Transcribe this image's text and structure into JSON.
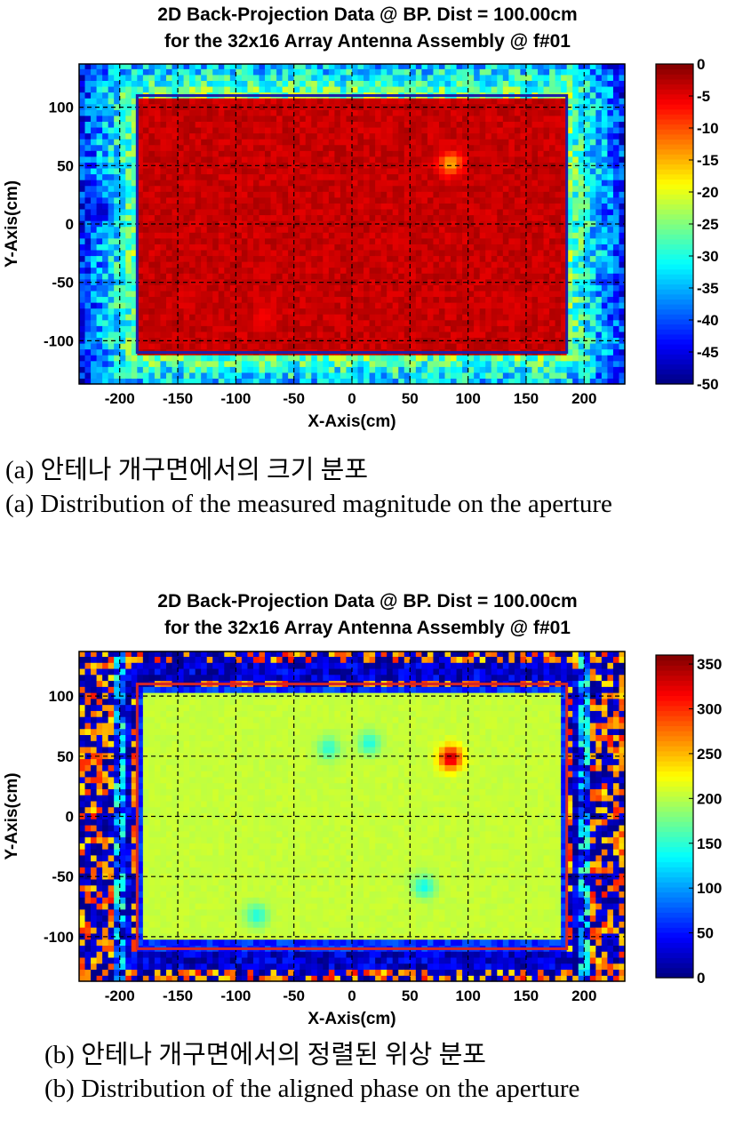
{
  "figure": {
    "panels": [
      {
        "title_line1": "2D Back-Projection Data @ BP. Dist = 100.00cm",
        "title_line2": "for the 32x16 Array Antenna Assembly @ f#01",
        "caption_ko": "(a) 안테나 개구면에서의 크기 분포",
        "caption_en": "(a) Distribution of the measured magnitude on the aperture"
      },
      {
        "title_line1": "2D Back-Projection Data @ BP. Dist = 100.00cm",
        "title_line2": "for the 32x16 Array Antenna Assembly @ f#01",
        "caption_ko": "(b) 안테나 개구면에서의 정렬된 위상 분포",
        "caption_en": "(b) Distribution of the aligned phase on the aperture"
      }
    ]
  },
  "chart_data": [
    {
      "type": "heatmap",
      "title": "2D Back-Projection Data @ BP. Dist = 100.00cm / for the 32x16 Array Antenna Assembly @ f#01",
      "xlabel": "X-Axis(cm)",
      "ylabel": "Y-Axis(cm)",
      "xlim": [
        -235,
        235
      ],
      "ylim": [
        -137,
        137
      ],
      "x_ticks": [
        -200,
        -150,
        -100,
        -50,
        0,
        50,
        100,
        150,
        200
      ],
      "y_ticks": [
        -100,
        -50,
        0,
        50,
        100
      ],
      "grid": true,
      "colorbar": {
        "min": -50,
        "max": 0,
        "ticks": [
          0,
          -5,
          -10,
          -15,
          -20,
          -25,
          -30,
          -35,
          -40,
          -45,
          -50
        ]
      },
      "aperture_rect": {
        "x": [
          -185,
          185
        ],
        "y": [
          -110,
          110
        ],
        "color": "#1f1fa6"
      },
      "field": {
        "inside_value": -2,
        "border_value": -25,
        "outside_value": -35
      },
      "features": [
        {
          "x": 85,
          "y": 52,
          "value": -15
        },
        {
          "x": -75,
          "y": -78,
          "value": -6
        },
        {
          "x": -215,
          "y": 12,
          "value": -48
        }
      ]
    },
    {
      "type": "heatmap",
      "title": "2D Back-Projection Data @ BP. Dist = 100.00cm / for the 32x16 Array Antenna Assembly @ f#01",
      "xlabel": "X-Axis(cm)",
      "ylabel": "Y-Axis(cm)",
      "xlim": [
        -235,
        235
      ],
      "ylim": [
        -137,
        137
      ],
      "x_ticks": [
        -200,
        -150,
        -100,
        -50,
        0,
        50,
        100,
        150,
        200
      ],
      "y_ticks": [
        -100,
        -50,
        0,
        50,
        100
      ],
      "grid": true,
      "colorbar": {
        "min": 0,
        "max": 360,
        "ticks": [
          350,
          300,
          250,
          200,
          150,
          100,
          50,
          0
        ]
      },
      "aperture_rect": {
        "x": [
          -185,
          185
        ],
        "y": [
          -110,
          110
        ],
        "color": "#d2262a"
      },
      "field": {
        "inside_value": 205,
        "border_value": 60,
        "outside_value": 140
      },
      "features": [
        {
          "x": -20,
          "y": 57,
          "value": 150
        },
        {
          "x": 15,
          "y": 61,
          "value": 145
        },
        {
          "x": 85,
          "y": 49,
          "value": 340
        },
        {
          "x": 62,
          "y": -58,
          "value": 140
        },
        {
          "x": -82,
          "y": -82,
          "value": 145
        }
      ]
    }
  ]
}
